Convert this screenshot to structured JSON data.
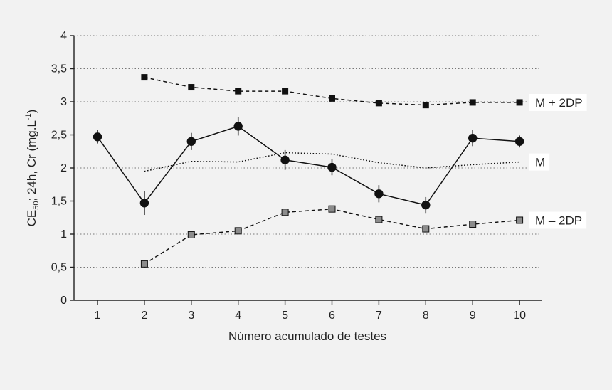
{
  "chart_data": {
    "type": "line",
    "xlabel": "Número acumulado de testes",
    "ylabel": {
      "base": "CE",
      "sub": "50",
      "rest": "; 24h, Cr (mg.L",
      "sup": "-1",
      "close": ")"
    },
    "x_ticks": [
      "1",
      "2",
      "3",
      "4",
      "5",
      "6",
      "7",
      "8",
      "9",
      "10"
    ],
    "y_ticks": [
      {
        "value": 0,
        "label": "0"
      },
      {
        "value": 0.5,
        "label": "0,5"
      },
      {
        "value": 1,
        "label": "1"
      },
      {
        "value": 1.5,
        "label": "1,5"
      },
      {
        "value": 2,
        "label": "2"
      },
      {
        "value": 2.5,
        "label": "2,5"
      },
      {
        "value": 3,
        "label": "3"
      },
      {
        "value": 3.5,
        "label": "3,5"
      },
      {
        "value": 4,
        "label": "4"
      }
    ],
    "xlim": [
      1,
      10
    ],
    "ylim": [
      0,
      4
    ],
    "grid": "horizontal-dotted",
    "series": [
      {
        "id": "upper",
        "name": "M + 2DP",
        "style": "dashed",
        "marker": "square",
        "color": "#111111",
        "x": [
          2,
          3,
          4,
          5,
          6,
          7,
          8,
          9,
          10
        ],
        "y": [
          3.37,
          3.22,
          3.16,
          3.16,
          3.05,
          2.98,
          2.95,
          2.99,
          2.99
        ]
      },
      {
        "id": "mean",
        "name": "M",
        "style": "dotted",
        "marker": "none",
        "color": "#111111",
        "x": [
          2,
          3,
          4,
          5,
          6,
          7,
          8,
          9,
          10
        ],
        "y": [
          1.95,
          2.1,
          2.09,
          2.23,
          2.21,
          2.08,
          2.0,
          2.05,
          2.09
        ]
      },
      {
        "id": "lower",
        "name": "M – 2DP",
        "style": "dashed",
        "marker": "square-gray",
        "color": "#111111",
        "x": [
          2,
          3,
          4,
          5,
          6,
          7,
          8,
          9,
          10
        ],
        "y": [
          0.55,
          0.99,
          1.05,
          1.33,
          1.38,
          1.22,
          1.08,
          1.15,
          1.21
        ]
      },
      {
        "id": "tests",
        "name": "",
        "style": "solid",
        "marker": "circle",
        "color": "#111111",
        "x": [
          1,
          2,
          3,
          4,
          5,
          6,
          7,
          8,
          9,
          10
        ],
        "y": [
          2.47,
          1.47,
          2.4,
          2.63,
          2.12,
          2.01,
          1.61,
          1.44,
          2.45,
          2.4
        ],
        "err": [
          0.1,
          0.18,
          0.13,
          0.14,
          0.15,
          0.12,
          0.13,
          0.12,
          0.12,
          0.09
        ]
      }
    ]
  }
}
